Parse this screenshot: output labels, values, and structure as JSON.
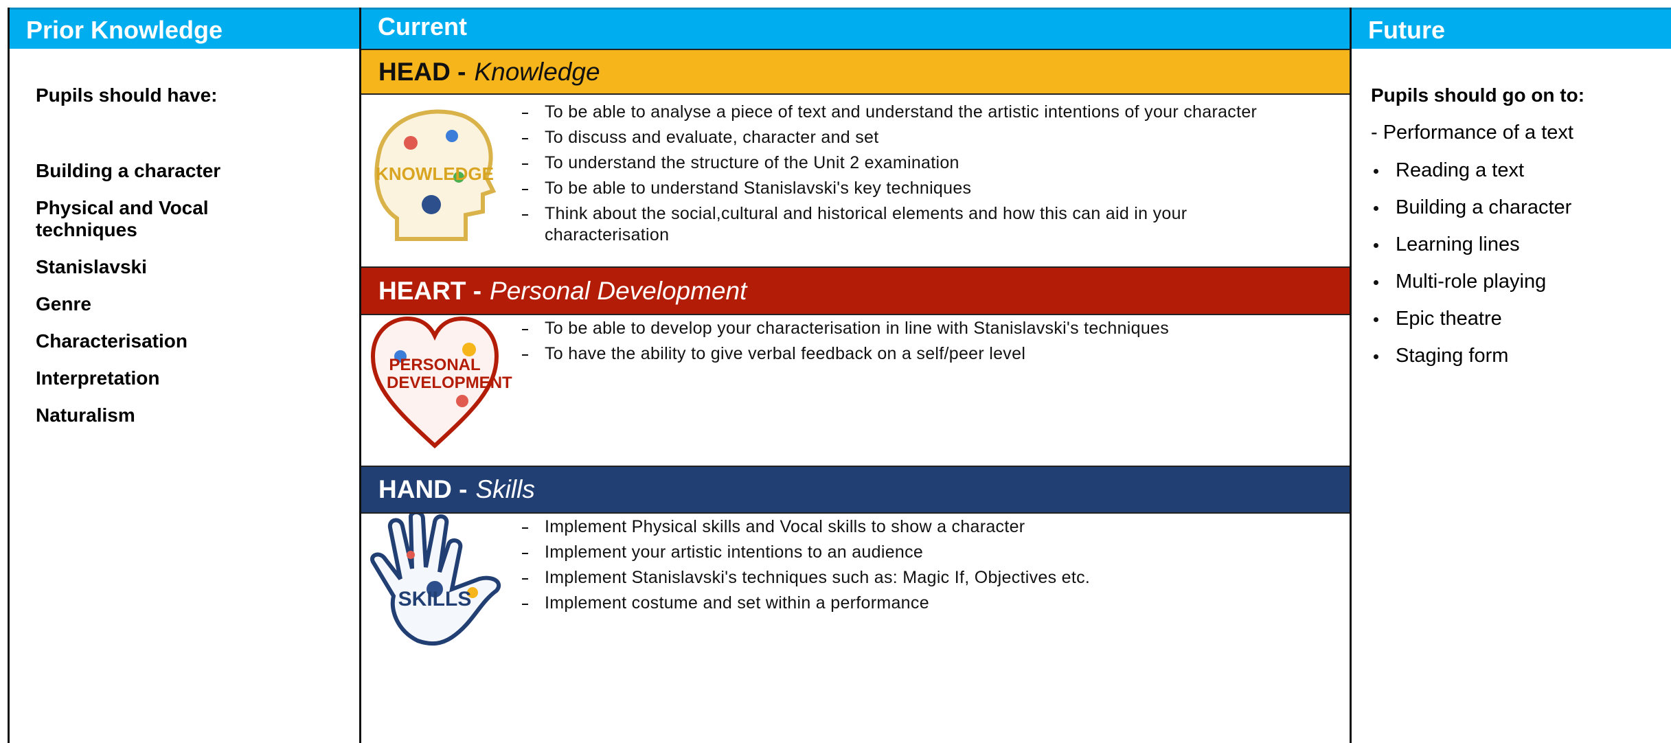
{
  "columns": {
    "prior": "Prior Knowledge",
    "current": "Current",
    "future": "Future"
  },
  "prior": {
    "heading": "Pupils should have:",
    "items": [
      "Building a character",
      "Physical and Vocal techniques",
      "Stanislavski",
      "Genre",
      "Characterisation",
      "Interpretation",
      "Naturalism"
    ]
  },
  "current": {
    "sections": [
      {
        "label": "HEAD -",
        "sublabel": "Knowledge",
        "icon_label": "KNOWLEDGE",
        "bullets": [
          "To be able to analyse a piece of text and understand the artistic intentions of your character",
          "To discuss and evaluate, character and set",
          "To understand the structure of the Unit 2 examination",
          "To be able to understand Stanislavski's key techniques",
          "Think about the social,cultural and historical elements and how this can aid in your characterisation"
        ]
      },
      {
        "label": "HEART -",
        "sublabel": "Personal Development",
        "icon_label": "PERSONAL DEVELOPMENT",
        "bullets": [
          "To be able to develop your characterisation in line with Stanislavski's techniques",
          "To have the ability to give verbal feedback on a self/peer level"
        ]
      },
      {
        "label": "HAND -",
        "sublabel": "Skills",
        "icon_label": "SKILLS",
        "bullets": [
          "Implement Physical skills and Vocal skills to show a character",
          "Implement your artistic intentions to an audience",
          "Implement Stanislavski's techniques such as: Magic If, Objectives etc.",
          "Implement costume and set within a performance"
        ]
      }
    ]
  },
  "future": {
    "heading": "Pupils should go on to:",
    "intro": "- Performance of a text",
    "items": [
      "Reading a text",
      "Building a character",
      "Learning lines",
      "Multi-role playing",
      "Epic theatre",
      "Staging form"
    ]
  }
}
